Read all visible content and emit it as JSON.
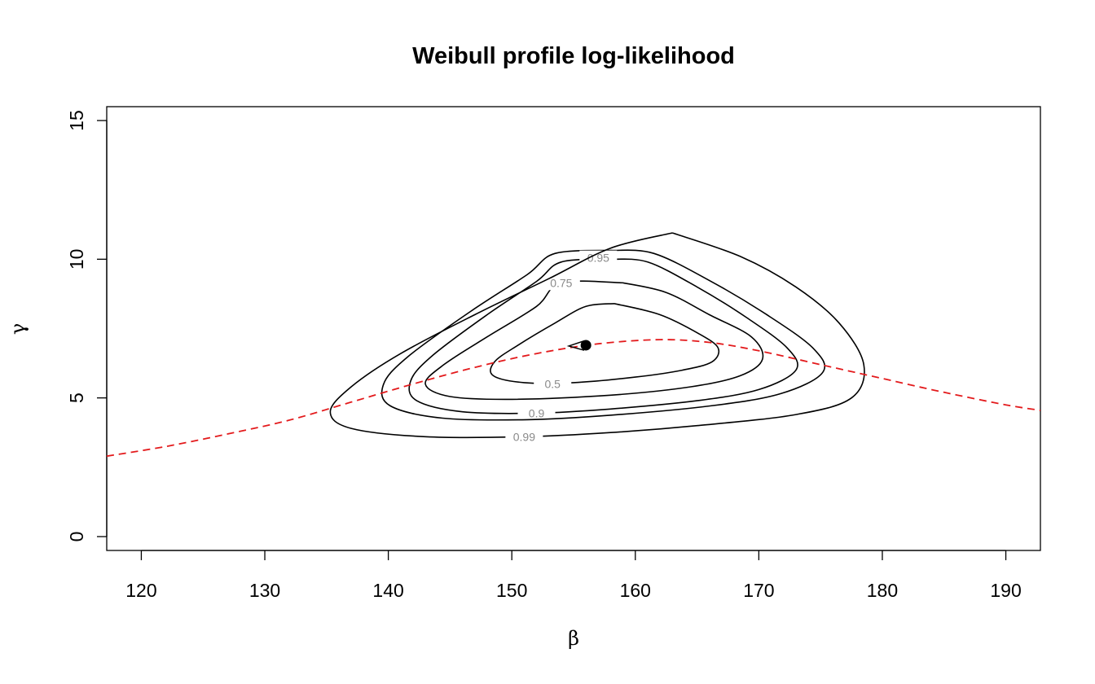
{
  "chart_data": {
    "type": "contour",
    "title": "Weibull profile log-likelihood",
    "xlabel": "β",
    "ylabel": "γ",
    "xlim": [
      117.2,
      192.8
    ],
    "ylim": [
      -0.5,
      15.5
    ],
    "x_ticks": [
      120,
      130,
      140,
      150,
      160,
      170,
      180,
      190
    ],
    "y_ticks": [
      0,
      5,
      10,
      15
    ],
    "grid": false,
    "legend": "none",
    "mle": {
      "beta": 156.0,
      "gamma": 6.9
    },
    "contours": [
      {
        "level": "0.5",
        "label_at": [
          153.3,
          5.5
        ],
        "points": [
          [
            158.3,
            8.4
          ],
          [
            162.0,
            8.0
          ],
          [
            165.2,
            7.3
          ],
          [
            166.7,
            6.8
          ],
          [
            166.2,
            6.3
          ],
          [
            163.8,
            6.0
          ],
          [
            160.0,
            5.75
          ],
          [
            155.0,
            5.55
          ],
          [
            151.0,
            5.55
          ],
          [
            148.5,
            5.8
          ],
          [
            148.6,
            6.3
          ],
          [
            150.5,
            6.9
          ],
          [
            153.5,
            7.7
          ],
          [
            156.0,
            8.3
          ],
          [
            158.3,
            8.4
          ]
        ]
      },
      {
        "level": "0.75",
        "label_at": [
          154.0,
          9.15
        ],
        "points": [
          [
            159.0,
            9.15
          ],
          [
            162.5,
            8.8
          ],
          [
            166.0,
            8.0
          ],
          [
            169.4,
            7.2
          ],
          [
            170.3,
            6.4
          ],
          [
            168.5,
            5.8
          ],
          [
            164.5,
            5.4
          ],
          [
            158.0,
            5.1
          ],
          [
            150.0,
            4.95
          ],
          [
            145.0,
            5.05
          ],
          [
            143.0,
            5.5
          ],
          [
            144.5,
            6.2
          ],
          [
            148.0,
            7.2
          ],
          [
            152.0,
            8.3
          ],
          [
            154.0,
            9.15
          ],
          [
            159.0,
            9.15
          ]
        ]
      },
      {
        "level": "0.9",
        "label_at": [
          152.0,
          4.45
        ],
        "points": [
          [
            158.0,
            10.0
          ],
          [
            161.0,
            9.9
          ],
          [
            165.0,
            9.0
          ],
          [
            169.0,
            7.9
          ],
          [
            172.3,
            6.8
          ],
          [
            173.0,
            6.0
          ],
          [
            170.0,
            5.3
          ],
          [
            165.0,
            4.9
          ],
          [
            158.0,
            4.6
          ],
          [
            152.0,
            4.45
          ],
          [
            146.0,
            4.5
          ],
          [
            142.3,
            4.9
          ],
          [
            141.8,
            5.6
          ],
          [
            143.5,
            6.5
          ],
          [
            148.0,
            8.0
          ],
          [
            152.0,
            9.2
          ],
          [
            154.0,
            9.9
          ],
          [
            158.0,
            10.0
          ]
        ]
      },
      {
        "level": "0.95",
        "label_at": [
          157.0,
          10.05
        ],
        "points": [
          [
            157.0,
            10.05
          ]
        ]
      },
      {
        "level": "0.99",
        "label_at": [
          151.0,
          3.6
        ],
        "points": [
          [
            163.0,
            10.95
          ],
          [
            168.5,
            10.1
          ],
          [
            173.0,
            9.0
          ],
          [
            176.5,
            7.7
          ],
          [
            178.5,
            6.2
          ],
          [
            177.5,
            5.0
          ],
          [
            173.0,
            4.4
          ],
          [
            165.0,
            4.0
          ],
          [
            158.0,
            3.75
          ],
          [
            151.0,
            3.6
          ],
          [
            143.0,
            3.6
          ],
          [
            137.0,
            3.9
          ],
          [
            135.3,
            4.5
          ],
          [
            137.0,
            5.4
          ],
          [
            141.0,
            6.6
          ],
          [
            147.0,
            8.0
          ],
          [
            153.0,
            9.3
          ],
          [
            158.0,
            10.4
          ],
          [
            163.0,
            10.95
          ]
        ]
      }
    ],
    "curve": {
      "style": "dashed",
      "color": "#e31a1c",
      "points": [
        [
          117.2,
          2.9
        ],
        [
          122.0,
          3.25
        ],
        [
          127.0,
          3.7
        ],
        [
          132.0,
          4.2
        ],
        [
          137.0,
          4.85
        ],
        [
          142.0,
          5.5
        ],
        [
          147.0,
          6.1
        ],
        [
          152.0,
          6.6
        ],
        [
          157.0,
          6.95
        ],
        [
          162.0,
          7.1
        ],
        [
          166.0,
          7.0
        ],
        [
          170.0,
          6.7
        ],
        [
          175.0,
          6.2
        ],
        [
          180.0,
          5.7
        ],
        [
          185.0,
          5.2
        ],
        [
          190.0,
          4.75
        ],
        [
          192.8,
          4.55
        ]
      ]
    },
    "colors": {
      "contour": "#000000",
      "curve": "#e31a1c",
      "contour_label": "#8a8a8a"
    }
  }
}
